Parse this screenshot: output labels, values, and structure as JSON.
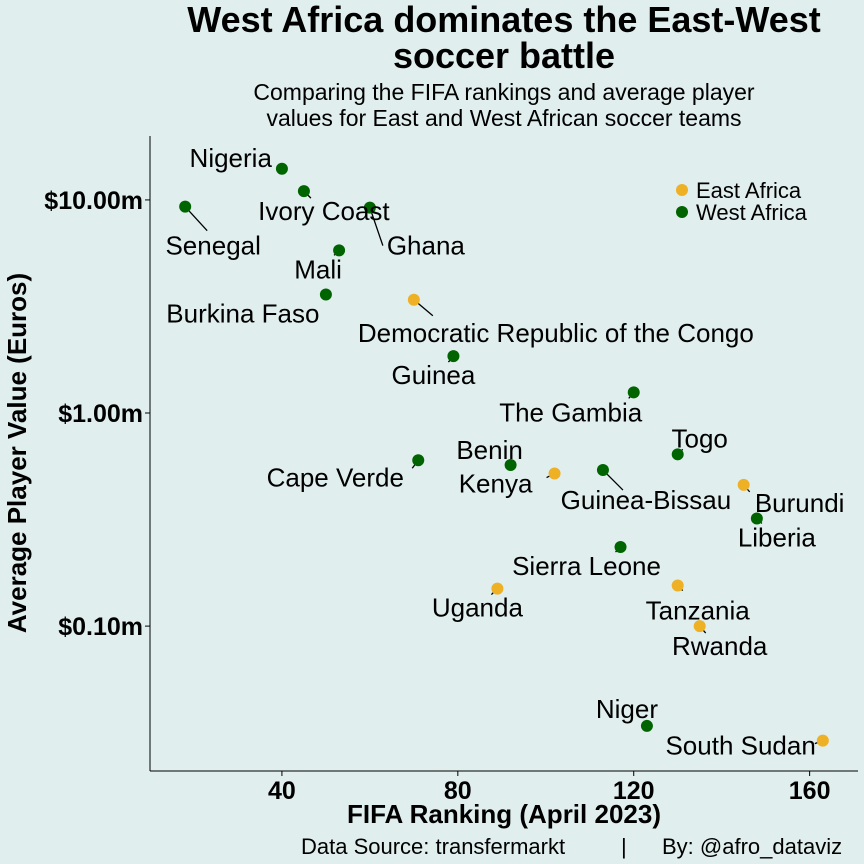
{
  "chart_data": {
    "type": "scatter",
    "title_line1": "West Africa dominates the East-West",
    "title_line2": "soccer battle",
    "subtitle_line1": "Comparing the FIFA rankings and average player",
    "subtitle_line2": "values for East and West African soccer teams",
    "xlabel": "FIFA Ranking (April 2023)",
    "ylabel": "Average Player Value (Euros)",
    "xlim": [
      10,
      171
    ],
    "ylim_log10": [
      -1.68,
      1.3
    ],
    "y_scale": "log10",
    "x_ticks": [
      40,
      80,
      120,
      160
    ],
    "y_ticks": [
      {
        "value": 10,
        "label": "$10.00m"
      },
      {
        "value": 1,
        "label": "$1.00m"
      },
      {
        "value": 0.1,
        "label": "$0.10m"
      }
    ],
    "grid": false,
    "legend_position": "top-right",
    "series": [
      {
        "name": "East Africa",
        "color": "#EEB125"
      },
      {
        "name": "West Africa",
        "color": "#006400"
      }
    ],
    "points": [
      {
        "team": "Nigeria",
        "region": "West Africa",
        "x": 40,
        "y": 14.0
      },
      {
        "team": "Ivory Coast",
        "region": "West Africa",
        "x": 45,
        "y": 11.0
      },
      {
        "team": "Senegal",
        "region": "West Africa",
        "x": 18,
        "y": 9.3
      },
      {
        "team": "Ghana",
        "region": "West Africa",
        "x": 60,
        "y": 9.2
      },
      {
        "team": "Mali",
        "region": "West Africa",
        "x": 53,
        "y": 5.8
      },
      {
        "team": "Burkina Faso",
        "region": "West Africa",
        "x": 50,
        "y": 3.6
      },
      {
        "team": "Democratic Republic of the Congo",
        "region": "East Africa",
        "x": 70,
        "y": 3.4
      },
      {
        "team": "Guinea",
        "region": "West Africa",
        "x": 79,
        "y": 1.85
      },
      {
        "team": "The Gambia",
        "region": "West Africa",
        "x": 120,
        "y": 1.25
      },
      {
        "team": "Togo",
        "region": "West Africa",
        "x": 130,
        "y": 0.64
      },
      {
        "team": "Cape Verde",
        "region": "West Africa",
        "x": 71,
        "y": 0.6
      },
      {
        "team": "Benin",
        "region": "West Africa",
        "x": 92,
        "y": 0.57
      },
      {
        "team": "Kenya",
        "region": "East Africa",
        "x": 102,
        "y": 0.52
      },
      {
        "team": "Guinea-Bissau",
        "region": "West Africa",
        "x": 113,
        "y": 0.54
      },
      {
        "team": "Burundi",
        "region": "East Africa",
        "x": 145,
        "y": 0.46
      },
      {
        "team": "Liberia",
        "region": "West Africa",
        "x": 148,
        "y": 0.32
      },
      {
        "team": "Sierra Leone",
        "region": "West Africa",
        "x": 117,
        "y": 0.235
      },
      {
        "team": "Uganda",
        "region": "East Africa",
        "x": 89,
        "y": 0.15
      },
      {
        "team": "Tanzania",
        "region": "East Africa",
        "x": 130,
        "y": 0.155
      },
      {
        "team": "Rwanda",
        "region": "East Africa",
        "x": 135,
        "y": 0.1
      },
      {
        "team": "Niger",
        "region": "West Africa",
        "x": 123,
        "y": 0.034
      },
      {
        "team": "South Sudan",
        "region": "East Africa",
        "x": 163,
        "y": 0.029
      }
    ]
  },
  "caption": {
    "source": "Data Source: transfermarkt",
    "separator": "|",
    "author": "By: @afro_dataviz"
  },
  "background_color": "#E0EEEE"
}
